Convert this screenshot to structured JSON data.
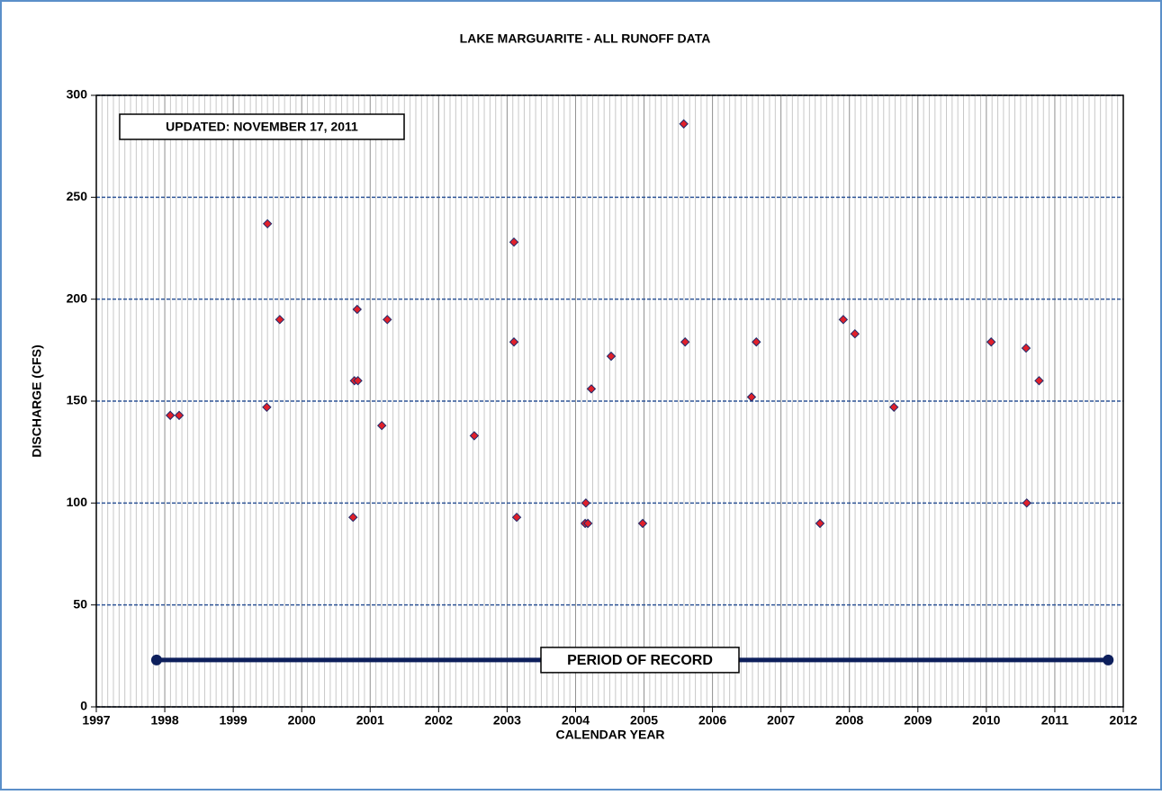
{
  "chart_data": {
    "type": "scatter",
    "title": "LAKE MARGUARITE  - ALL RUNOFF DATA",
    "annotation": "UPDATED: NOVEMBER 17, 2011",
    "x_label": "CALENDAR YEAR",
    "y_label": "DISCHARGE (CFS)",
    "xlim": [
      1997,
      2012
    ],
    "xticks": [
      1997,
      1998,
      1999,
      2000,
      2001,
      2002,
      2003,
      2004,
      2005,
      2006,
      2007,
      2008,
      2009,
      2010,
      2011,
      2012
    ],
    "ylim": [
      0,
      300
    ],
    "yticks": [
      0,
      50,
      100,
      150,
      200,
      250,
      300
    ],
    "minor_grid_x": 12,
    "grid": true,
    "color": "#e0202a",
    "x": [
      1998.08,
      1998.21,
      1999.5,
      1999.49,
      1999.68,
      2000.75,
      2000.77,
      2000.82,
      2000.81,
      2001.17,
      2001.25,
      2002.52,
      2003.1,
      2003.1,
      2003.14,
      2004.15,
      2004.14,
      2004.18,
      2004.23,
      2004.52,
      2004.98,
      2005.58,
      2005.6,
      2006.57,
      2006.64,
      2007.57,
      2007.91,
      2008.08,
      2008.65,
      2010.07,
      2010.58,
      2010.59,
      2010.77
    ],
    "values": [
      143,
      143,
      237,
      147,
      190,
      93,
      160,
      160,
      195,
      138,
      190,
      133,
      228,
      179,
      93,
      100,
      90,
      90,
      156,
      172,
      90,
      286,
      179,
      152,
      179,
      90,
      190,
      183,
      147,
      179,
      176,
      100,
      160
    ],
    "period_of_record": {
      "label": "PERIOD OF RECORD",
      "x": [
        1997.88,
        2011.78
      ],
      "y": 23,
      "color": "#0d1f5c"
    }
  }
}
